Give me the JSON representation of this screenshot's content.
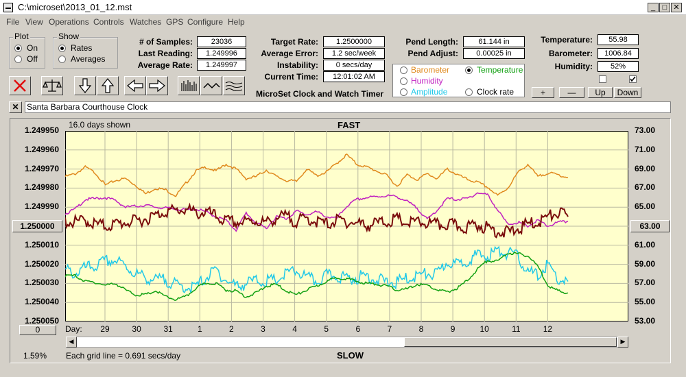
{
  "window": {
    "title": "C:\\microset\\2013_01_12.mst",
    "minimize": "_",
    "maximize": "□",
    "close": "✕"
  },
  "menu": [
    "File",
    "View",
    "Operations",
    "Controls",
    "Watches",
    "GPS",
    "Configure",
    "Help"
  ],
  "plot_group": {
    "title": "Plot",
    "options": [
      "On",
      "Off"
    ],
    "selected": 0
  },
  "show_group": {
    "title": "Show",
    "options": [
      "Rates",
      "Averages"
    ],
    "selected": 0
  },
  "stats": {
    "samples_label": "# of Samples:",
    "samples": "23036",
    "last_label": "Last Reading:",
    "last": "1.249996",
    "avg_label": "Average Rate:",
    "avg": "1.249997"
  },
  "targets": {
    "target_label": "Target Rate:",
    "target": "1.2500000",
    "error_label": "Average Error:",
    "error": "1.2 sec/week",
    "instab_label": "Instability:",
    "instab": "0 secs/day",
    "time_label": "Current Time:",
    "time": "12:01:02 AM"
  },
  "subtitle": "MicroSet Clock and Watch Timer",
  "pend": {
    "length_label": "Pend Length:",
    "length": "61.144 in",
    "adjust_label": "Pend Adjust:",
    "adjust": "0.00025 in"
  },
  "series_select": {
    "options": [
      {
        "label": "Barometer",
        "color": "#e08a1e"
      },
      {
        "label": "Temperature",
        "color": "#12a012"
      },
      {
        "label": "Humidity",
        "color": "#c020c0"
      },
      {
        "label": "Clock rate",
        "color": "#000000"
      },
      {
        "label": "Amplitude",
        "color": "#20c8e8"
      }
    ],
    "selected": "Temperature"
  },
  "env": {
    "temp_label": "Temperature:",
    "temp": "55.98",
    "baro_label": "Barometer:",
    "baro": "1006.84",
    "hum_label": "Humidity:",
    "hum": "52%"
  },
  "scale_buttons": [
    "+",
    "—",
    "Up",
    "Down"
  ],
  "toolbar_icons": [
    "delete-icon",
    "balance-icon",
    "arrow-down-icon",
    "arrow-up-icon",
    "arrow-left-icon",
    "arrow-right-icon",
    "bar-graph-icon",
    "line-graph-icon",
    "wave-graph-icon"
  ],
  "clock_name": "Santa Barbara Courthouse Clock",
  "clear_btn": "✕",
  "chart_header": {
    "days_shown": "16.0 days shown",
    "fast": "FAST",
    "slow": "SLOW",
    "grid_note": "Each grid line = 0.691 secs/day",
    "percent": "1.59%",
    "left_box": "1.250000",
    "right_box": "63.00",
    "bottom_box": "0",
    "day_label": "Day:"
  },
  "chart_data": {
    "type": "line",
    "x_ticks": [
      "29",
      "30",
      "31",
      "1",
      "2",
      "3",
      "4",
      "5",
      "6",
      "7",
      "8",
      "9",
      "10",
      "11",
      "12"
    ],
    "y_left_ticks": [
      "1.249950",
      "1.249960",
      "1.249970",
      "1.249980",
      "1.249990",
      "1.250000",
      "1.250010",
      "1.250020",
      "1.250030",
      "1.250040",
      "1.250050"
    ],
    "y_left_range": [
      1.24995,
      1.25005
    ],
    "y_left_inverted": true,
    "y_right_ticks": [
      "73.00",
      "71.00",
      "69.00",
      "67.00",
      "65.00",
      "63.00",
      "61.00",
      "59.00",
      "57.00",
      "55.00",
      "53.00"
    ],
    "y_right_range": [
      53,
      73
    ],
    "x_range_days": 16,
    "series": [
      {
        "color": "#e08a1e",
        "values": [
          68.2,
          68.5,
          69.2,
          68.6,
          67.3,
          67.8,
          68.0,
          67.3,
          66.4,
          67.0,
          66.8,
          66.2,
          67.5,
          68.8,
          69.2,
          68.8,
          69.5,
          69.0,
          68.0,
          68.2,
          68.9,
          68.2,
          67.8,
          67.7,
          69.0,
          68.3,
          68.7,
          69.6,
          70.5,
          69.5,
          69.2,
          68.8,
          68.3,
          67.2,
          68.4,
          67.9,
          68.5,
          68.0,
          69.0,
          68.4,
          67.9,
          67.6,
          67.1,
          66.2,
          67.0,
          68.6,
          69.5,
          68.2,
          68.6,
          68.4,
          68.1
        ]
      },
      {
        "color": "#c020c0",
        "values": [
          64.3,
          64.8,
          65.8,
          65.9,
          66.0,
          65.7,
          65.0,
          65.1,
          65.2,
          65.0,
          64.9,
          64.8,
          64.7,
          64.8,
          64.5,
          64.0,
          63.6,
          62.6,
          64.4,
          63.3,
          62.8,
          64.0,
          63.8,
          64.6,
          64.2,
          64.5,
          64.0,
          63.8,
          65.1,
          65.8,
          66.0,
          66.1,
          66.2,
          66.1,
          65.6,
          64.9,
          63.7,
          64.7,
          65.9,
          65.8,
          65.9,
          66.5,
          66.3,
          64.7,
          63.2,
          63.4,
          63.0,
          63.6,
          63.0,
          63.4,
          63.5
        ]
      },
      {
        "color": "#7a0c0c",
        "values": [
          63.5,
          63.4,
          63.6,
          63.2,
          63.0,
          63.2,
          63.4,
          63.5,
          63.8,
          64.1,
          64.6,
          64.6,
          64.8,
          64.3,
          64.5,
          64.0,
          63.5,
          63.4,
          63.4,
          63.6,
          63.3,
          63.9,
          64.0,
          63.5,
          63.8,
          63.5,
          63.2,
          63.6,
          63.5,
          63.3,
          63.1,
          63.3,
          63.5,
          63.7,
          63.3,
          63.4,
          63.3,
          63.1,
          63.2,
          63.0,
          62.9,
          63.2,
          62.8,
          62.5,
          62.3,
          62.7,
          63.2,
          63.4,
          64.0,
          64.4,
          64.0
        ]
      },
      {
        "color": "#20c8e8",
        "values": [
          58.4,
          58.0,
          58.6,
          58.8,
          59.3,
          59.4,
          58.8,
          58.0,
          57.6,
          57.3,
          57.4,
          56.8,
          56.6,
          56.6,
          57.6,
          58.4,
          57.3,
          56.7,
          57.0,
          57.3,
          57.2,
          57.3,
          58.0,
          58.3,
          57.6,
          57.2,
          57.8,
          57.8,
          57.5,
          57.6,
          57.8,
          57.4,
          57.1,
          57.1,
          57.5,
          57.8,
          58.0,
          57.9,
          59.3,
          58.9,
          59.5,
          59.9,
          59.9,
          60.4,
          60.2,
          59.8,
          58.2,
          57.8,
          59.0,
          57.4,
          57.2
        ]
      },
      {
        "color": "#12a012",
        "values": [
          57.8,
          57.8,
          57.2,
          57.1,
          56.8,
          57.0,
          56.3,
          55.8,
          55.8,
          56.2,
          55.6,
          55.3,
          55.6,
          56.5,
          57.0,
          57.0,
          56.3,
          56.2,
          55.6,
          56.0,
          56.7,
          56.9,
          56.2,
          55.8,
          56.3,
          56.7,
          57.2,
          57.6,
          57.5,
          57.2,
          57.0,
          56.9,
          56.7,
          56.3,
          56.4,
          56.9,
          56.8,
          56.3,
          56.1,
          56.5,
          57.3,
          58.5,
          59.4,
          59.3,
          60.2,
          60.1,
          59.9,
          58.8,
          56.8,
          56.2,
          56.0
        ]
      }
    ]
  }
}
